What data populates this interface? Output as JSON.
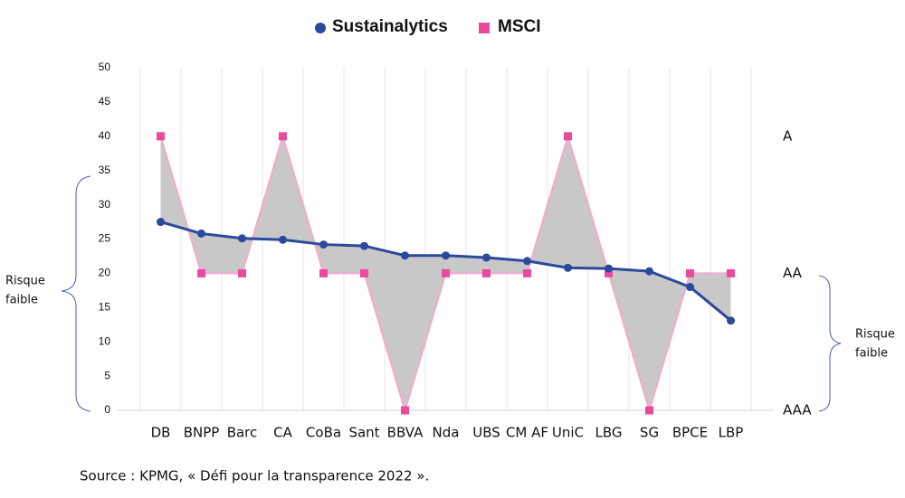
{
  "chart_data": {
    "type": "line",
    "categories": [
      "DB",
      "BNPP",
      "Barc",
      "CA",
      "CoBa",
      "Sant",
      "BBVA",
      "Nda",
      "UBS",
      "CM AF",
      "UniC",
      "LBG",
      "SG",
      "BPCE",
      "LBP"
    ],
    "series": [
      {
        "name": "Sustainalytics",
        "color": "#2b4a9c",
        "values": [
          27.5,
          25.8,
          25.1,
          24.9,
          24.2,
          24.0,
          22.6,
          22.6,
          22.3,
          21.8,
          20.8,
          20.7,
          20.3,
          18.0,
          13.1
        ]
      },
      {
        "name": "MSCI",
        "color": "#ea4a9c",
        "values": [
          40,
          20,
          20,
          40,
          20,
          20,
          0,
          20,
          20,
          20,
          40,
          20,
          0,
          20,
          20
        ]
      }
    ],
    "ylim": [
      0,
      50
    ],
    "yticks": [
      0,
      5,
      10,
      15,
      20,
      25,
      30,
      35,
      40,
      45,
      50
    ],
    "y2lim": [
      0,
      50
    ],
    "y2ticks": [
      {
        "value": 0,
        "label": "AAA"
      },
      {
        "value": 20,
        "label": "AA"
      },
      {
        "value": 40,
        "label": "A"
      }
    ],
    "grid": true,
    "fill_between_color": "#c8c8c8",
    "annotations": [
      [
        "Risque",
        "faible"
      ],
      [
        "Risque",
        "faible"
      ]
    ],
    "source": "Source : KPMG, « Défi pour la transparence 2022 »."
  }
}
